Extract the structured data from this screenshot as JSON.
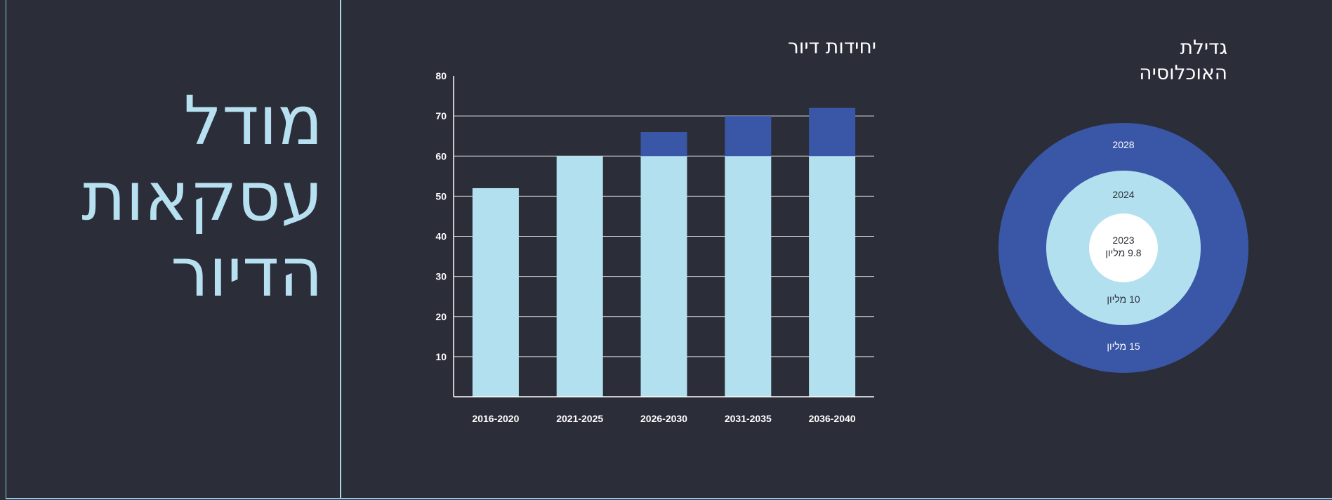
{
  "slide": {
    "title_lines": [
      "מודל",
      "עסקאות",
      "הדיור"
    ]
  },
  "colors": {
    "background": "#2b2d38",
    "light_blue": "#b3e0ef",
    "dark_blue": "#3a56a7",
    "accent_line": "#a9d7ea"
  },
  "chart_data": [
    {
      "type": "bar",
      "stacked": true,
      "title": "יחידות דיור",
      "xlabel": "",
      "ylabel": "",
      "categories": [
        "2016-2020",
        "2021-2025",
        "2026-2030",
        "2031-2035",
        "2036-2040"
      ],
      "series": [
        {
          "values": [
            52,
            60,
            60,
            60,
            60
          ],
          "color": "#b3e0ef"
        },
        {
          "values": [
            0,
            0,
            6,
            10,
            12
          ],
          "color": "#3a56a7"
        }
      ],
      "ylim": [
        0,
        80
      ],
      "yticks": [
        10,
        20,
        30,
        40,
        50,
        60,
        70,
        80
      ],
      "grid": true,
      "legend": "none"
    },
    {
      "type": "pie",
      "subtype": "nested-donut",
      "title_lines": [
        "גדילת",
        "האוכלוסיה"
      ],
      "rings": [
        {
          "year": "2028",
          "value_label": "15 מליון",
          "color": "#3a56a7"
        },
        {
          "year": "2024",
          "value_label": "10 מליון",
          "color": "#b3e0ef"
        },
        {
          "year": "2023",
          "value_label": "9.8 מליון",
          "color": "#ffffff"
        }
      ]
    }
  ]
}
